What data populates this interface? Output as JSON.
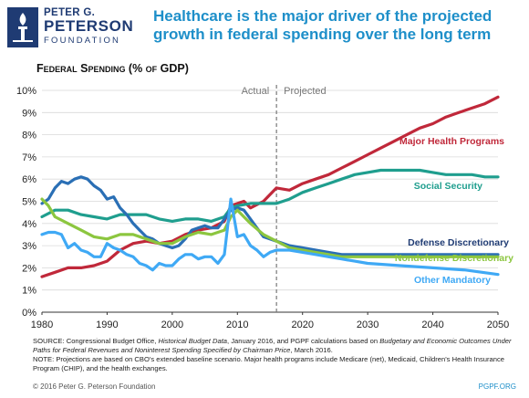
{
  "branding": {
    "line1": "PETER G.",
    "line2": "PETERSON",
    "line3": "FOUNDATION",
    "color": "#1f3b73"
  },
  "headline": "Healthcare is the major driver of the projected growth in federal spending over the long term",
  "footer": {
    "copyright": "© 2016 Peter G. Peterson Foundation",
    "site": "PGPF.ORG"
  },
  "notes": {
    "source_prefix": "SOURCE: Congressional Budget Office, ",
    "source_title1": "Historical Budget Data",
    "source_mid": ", January 2016, and PGPF calculations based on ",
    "source_title2": "Budgetary and Economic Outcomes Under Paths for Federal Revenues and Noninterest Spending Specified by Chairman Price",
    "source_suffix": ", March 2016.",
    "note": "NOTE: Projections are based on CBO's extended baseline scenario. Major health programs include Medicare (net), Medicaid, Children's Health Insurance Program (CHIP), and the health exchanges."
  },
  "chart_data": {
    "type": "line",
    "title": "Federal Spending (% of GDP)",
    "xlabel": "",
    "ylabel": "",
    "xlim": [
      1980,
      2050
    ],
    "ylim": [
      0,
      10
    ],
    "x_ticks": [
      "1980",
      "1990",
      "2000",
      "2010",
      "2020",
      "2030",
      "2040",
      "2050"
    ],
    "y_ticks": [
      "0%",
      "1%",
      "2%",
      "3%",
      "4%",
      "5%",
      "6%",
      "7%",
      "8%",
      "9%",
      "10%"
    ],
    "grid": "horizontal",
    "divider": {
      "x": 2016,
      "left_label": "Actual",
      "right_label": "Projected"
    },
    "series": [
      {
        "name": "Major Health Programs",
        "color": "#c0283a",
        "x": [
          1980,
          1982,
          1984,
          1986,
          1988,
          1990,
          1992,
          1994,
          1996,
          1998,
          2000,
          2002,
          2004,
          2006,
          2008,
          2009,
          2010,
          2011,
          2012,
          2014,
          2016,
          2018,
          2020,
          2022,
          2024,
          2026,
          2028,
          2030,
          2032,
          2034,
          2036,
          2038,
          2040,
          2042,
          2044,
          2046,
          2048,
          2050
        ],
        "y": [
          1.6,
          1.8,
          2.0,
          2.0,
          2.1,
          2.3,
          2.8,
          3.1,
          3.2,
          3.1,
          3.2,
          3.5,
          3.7,
          3.8,
          4.1,
          4.8,
          4.9,
          5.0,
          4.7,
          5.0,
          5.6,
          5.5,
          5.8,
          6.0,
          6.2,
          6.5,
          6.8,
          7.1,
          7.4,
          7.7,
          8.0,
          8.3,
          8.5,
          8.8,
          9.0,
          9.2,
          9.4,
          9.7
        ]
      },
      {
        "name": "Social Security",
        "color": "#1f9e8e",
        "x": [
          1980,
          1982,
          1984,
          1986,
          1988,
          1990,
          1992,
          1994,
          1996,
          1998,
          2000,
          2002,
          2004,
          2006,
          2008,
          2009,
          2010,
          2012,
          2014,
          2016,
          2018,
          2020,
          2022,
          2024,
          2026,
          2028,
          2030,
          2032,
          2034,
          2036,
          2038,
          2040,
          2042,
          2044,
          2046,
          2048,
          2050
        ],
        "y": [
          4.3,
          4.6,
          4.6,
          4.4,
          4.3,
          4.2,
          4.4,
          4.4,
          4.4,
          4.2,
          4.1,
          4.2,
          4.2,
          4.1,
          4.3,
          4.7,
          4.8,
          4.9,
          4.9,
          4.9,
          5.1,
          5.4,
          5.6,
          5.8,
          6.0,
          6.2,
          6.3,
          6.4,
          6.4,
          6.4,
          6.4,
          6.3,
          6.2,
          6.2,
          6.2,
          6.1,
          6.1
        ]
      },
      {
        "name": "Defense Discretionary",
        "color": "#2a6fb5",
        "x": [
          1980,
          1981,
          1982,
          1983,
          1984,
          1985,
          1986,
          1987,
          1988,
          1989,
          1990,
          1991,
          1992,
          1993,
          1994,
          1995,
          1996,
          1997,
          1998,
          1999,
          2000,
          2001,
          2002,
          2003,
          2004,
          2005,
          2006,
          2007,
          2008,
          2009,
          2010,
          2011,
          2012,
          2013,
          2014,
          2016,
          2018,
          2020,
          2022,
          2024,
          2026,
          2028,
          2030,
          2035,
          2040,
          2045,
          2050
        ],
        "y": [
          4.9,
          5.1,
          5.6,
          5.9,
          5.8,
          6.0,
          6.1,
          6.0,
          5.7,
          5.5,
          5.1,
          5.2,
          4.7,
          4.4,
          4.0,
          3.7,
          3.4,
          3.3,
          3.1,
          3.0,
          2.9,
          3.0,
          3.3,
          3.7,
          3.8,
          3.9,
          3.8,
          3.8,
          4.2,
          4.6,
          4.7,
          4.6,
          4.2,
          3.8,
          3.4,
          3.2,
          3.0,
          2.9,
          2.8,
          2.7,
          2.6,
          2.6,
          2.6,
          2.6,
          2.6,
          2.6,
          2.6
        ]
      },
      {
        "name": "Nondefense Discretionary",
        "color": "#8cc63f",
        "x": [
          1980,
          1981,
          1982,
          1984,
          1986,
          1988,
          1990,
          1992,
          1994,
          1996,
          1998,
          2000,
          2002,
          2004,
          2006,
          2008,
          2009,
          2010,
          2011,
          2012,
          2014,
          2016,
          2018,
          2020,
          2022,
          2024,
          2026,
          2028,
          2030,
          2035,
          2040,
          2045,
          2050
        ],
        "y": [
          5.1,
          4.8,
          4.3,
          4.0,
          3.7,
          3.4,
          3.3,
          3.5,
          3.5,
          3.3,
          3.1,
          3.1,
          3.4,
          3.6,
          3.5,
          3.7,
          4.3,
          4.6,
          4.3,
          4.0,
          3.5,
          3.2,
          2.9,
          2.8,
          2.7,
          2.6,
          2.5,
          2.5,
          2.5,
          2.5,
          2.5,
          2.5,
          2.5
        ]
      },
      {
        "name": "Other Mandatory",
        "color": "#3fa9f5",
        "x": [
          1980,
          1981,
          1982,
          1983,
          1984,
          1985,
          1986,
          1987,
          1988,
          1989,
          1990,
          1991,
          1992,
          1993,
          1994,
          1995,
          1996,
          1997,
          1998,
          1999,
          2000,
          2001,
          2002,
          2003,
          2004,
          2005,
          2006,
          2007,
          2008,
          2009,
          2010,
          2011,
          2012,
          2013,
          2014,
          2015,
          2016,
          2018,
          2020,
          2022,
          2024,
          2026,
          2028,
          2030,
          2035,
          2040,
          2045,
          2050
        ],
        "y": [
          3.5,
          3.6,
          3.6,
          3.5,
          2.9,
          3.1,
          2.8,
          2.7,
          2.5,
          2.5,
          3.1,
          2.9,
          2.8,
          2.6,
          2.5,
          2.2,
          2.1,
          1.9,
          2.2,
          2.1,
          2.1,
          2.4,
          2.6,
          2.6,
          2.4,
          2.5,
          2.5,
          2.2,
          2.6,
          5.1,
          3.4,
          3.5,
          3.0,
          2.8,
          2.5,
          2.7,
          2.8,
          2.8,
          2.7,
          2.6,
          2.5,
          2.4,
          2.3,
          2.2,
          2.1,
          2.0,
          1.9,
          1.7
        ]
      }
    ],
    "label_colors": {
      "Major Health Programs": "#c0283a",
      "Social Security": "#1f9e8e",
      "Defense Discretionary": "#1f3b73",
      "Nondefense Discretionary": "#8cc63f",
      "Other Mandatory": "#3fa9f5"
    }
  }
}
